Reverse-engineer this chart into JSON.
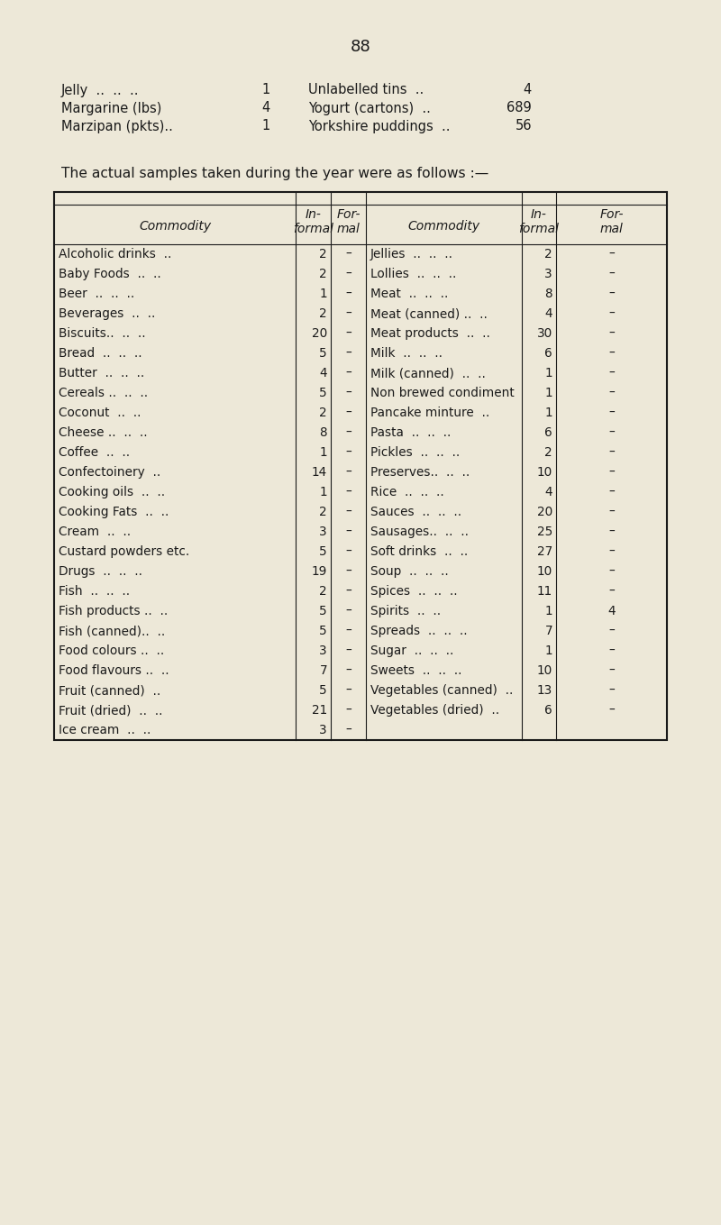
{
  "page_number": "88",
  "bg_color": "#ede8d8",
  "text_color": "#1a1a1a",
  "top_items_clean": [
    {
      "left_label": "Jelly  ..  ..  ..",
      "left_val": "1",
      "right_label": "Unlabelled tins  ..",
      "right_val": "4"
    },
    {
      "left_label": "Margarine (lbs)",
      "left_val": "4",
      "right_label": "Yogurt (cartons)  ..",
      "right_val": "689"
    },
    {
      "left_label": "Marzipan (pkts)..",
      "left_val": "1",
      "right_label": "Yorkshire puddings  ..",
      "right_val": "56"
    }
  ],
  "section_title": "The actual samples taken during the year were as follows :—",
  "left_rows": [
    [
      "Alcoholic drinks  ..",
      "2",
      "–"
    ],
    [
      "Baby Foods  ..  ..",
      "2",
      "–"
    ],
    [
      "Beer  ..  ..  ..",
      "1",
      "–"
    ],
    [
      "Beverages  ..  ..",
      "2",
      "–"
    ],
    [
      "Biscuits..  ..  ..",
      "20",
      "–"
    ],
    [
      "Bread  ..  ..  ..",
      "5",
      "–"
    ],
    [
      "Butter  ..  ..  ..",
      "4",
      "–"
    ],
    [
      "Cereals ..  ..  ..",
      "5",
      "–"
    ],
    [
      "Coconut  ..  ..",
      "2",
      "–"
    ],
    [
      "Cheese ..  ..  ..",
      "8",
      "–"
    ],
    [
      "Coffee  ..  ..",
      "1",
      "–"
    ],
    [
      "Confectoinery  ..",
      "14",
      "–"
    ],
    [
      "Cooking oils  ..  ..",
      "1",
      "–"
    ],
    [
      "Cooking Fats  ..  ..",
      "2",
      "–"
    ],
    [
      "Cream  ..  ..",
      "3",
      "–"
    ],
    [
      "Custard powders etc.",
      "5",
      "–"
    ],
    [
      "Drugs  ..  ..  ..",
      "19",
      "–"
    ],
    [
      "Fish  ..  ..  ..",
      "2",
      "–"
    ],
    [
      "Fish products ..  ..",
      "5",
      "–"
    ],
    [
      "Fish (canned)..  ..",
      "5",
      "–"
    ],
    [
      "Food colours ..  ..",
      "3",
      "–"
    ],
    [
      "Food flavours ..  ..",
      "7",
      "–"
    ],
    [
      "Fruit (canned)  ..",
      "5",
      "–"
    ],
    [
      "Fruit (dried)  ..  ..",
      "21",
      "–"
    ],
    [
      "Ice cream  ..  ..",
      "3",
      "–"
    ]
  ],
  "right_rows": [
    [
      "Jellies  ..  ..  ..",
      "2",
      "–"
    ],
    [
      "Lollies  ..  ..  ..",
      "3",
      "–"
    ],
    [
      "Meat  ..  ..  ..",
      "8",
      "–"
    ],
    [
      "Meat (canned) ..  ..",
      "4",
      "–"
    ],
    [
      "Meat products  ..  ..",
      "30",
      "–"
    ],
    [
      "Milk  ..  ..  ..",
      "6",
      "–"
    ],
    [
      "Milk (canned)  ..  ..",
      "1",
      "–"
    ],
    [
      "Non brewed condiment",
      "1",
      "–"
    ],
    [
      "Pancake minture  ..",
      "1",
      "–"
    ],
    [
      "Pasta  ..  ..  ..",
      "6",
      "–"
    ],
    [
      "Pickles  ..  ..  ..",
      "2",
      "–"
    ],
    [
      "Preserves..  ..  ..",
      "10",
      "–"
    ],
    [
      "Rice  ..  ..  ..",
      "4",
      "–"
    ],
    [
      "Sauces  ..  ..  ..",
      "20",
      "–"
    ],
    [
      "Sausages..  ..  ..",
      "25",
      "–"
    ],
    [
      "Soft drinks  ..  ..",
      "27",
      "–"
    ],
    [
      "Soup  ..  ..  ..",
      "10",
      "–"
    ],
    [
      "Spices  ..  ..  ..",
      "11",
      "–"
    ],
    [
      "Spirits  ..  ..",
      "1",
      "4"
    ],
    [
      "Spreads  ..  ..  ..",
      "7",
      "–"
    ],
    [
      "Sugar  ..  ..  ..",
      "1",
      "–"
    ],
    [
      "Sweets  ..  ..  ..",
      "10",
      "–"
    ],
    [
      "Vegetables (canned)  ..",
      "13",
      "–"
    ],
    [
      "Vegetables (dried)  ..",
      "6",
      "–"
    ],
    [
      "",
      "",
      ""
    ]
  ]
}
